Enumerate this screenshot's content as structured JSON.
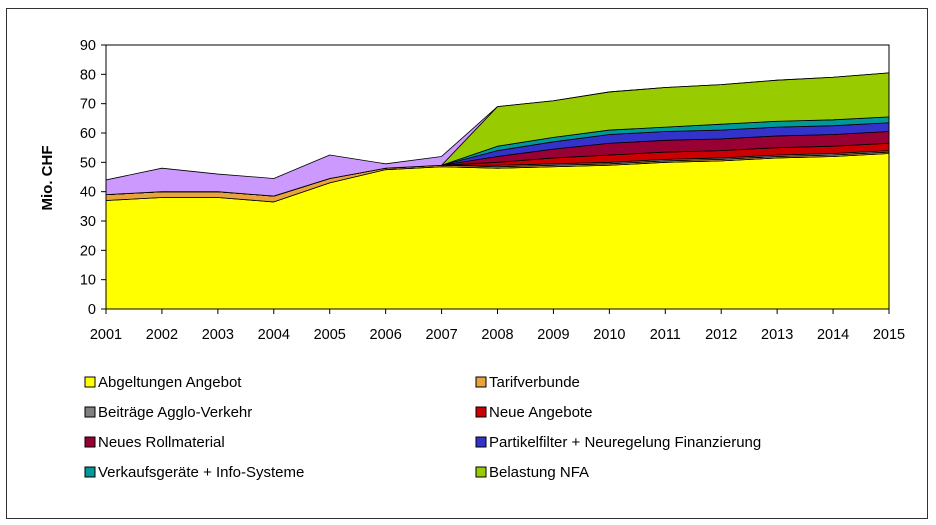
{
  "chart_data": {
    "type": "area",
    "stacked": true,
    "title": "",
    "xlabel": "",
    "ylabel": "Mio. CHF",
    "ylim": [
      0,
      90
    ],
    "yticks": [
      0,
      10,
      20,
      30,
      40,
      50,
      60,
      70,
      80,
      90
    ],
    "grid": false,
    "legend_position": "bottom",
    "x": [
      "2001",
      "2002",
      "2003",
      "2004",
      "2005",
      "2006",
      "2007",
      "2008",
      "2009",
      "2010",
      "2011",
      "2012",
      "2013",
      "2014",
      "2015"
    ],
    "series": [
      {
        "name": "Abgeltungen Angebot",
        "color": "#ffff00",
        "values": [
          37,
          38,
          38,
          36.5,
          43,
          47.5,
          48.5,
          48,
          48.5,
          49,
          50,
          50.5,
          51.5,
          52,
          53
        ]
      },
      {
        "name": "Tarifverbunde",
        "color": "#e8a33c",
        "values": [
          2,
          2,
          2,
          2,
          1.5,
          0.5,
          0.5,
          0.5,
          0.5,
          0.5,
          0.5,
          0.5,
          0.5,
          0.5,
          0.5
        ]
      },
      {
        "name": "Beiträge Agglo-Verkehr",
        "color": "#808080",
        "values": [
          0,
          0,
          0,
          0,
          0,
          0,
          0,
          0.5,
          0.5,
          0.5,
          0.5,
          0.5,
          0.5,
          0.5,
          0.5
        ]
      },
      {
        "name": "Neue Angebote",
        "color": "#cc0000",
        "values": [
          0,
          0,
          0,
          0,
          0,
          0,
          0,
          1,
          2,
          2.5,
          2.5,
          2.5,
          2.5,
          2.5,
          2.5
        ]
      },
      {
        "name": "Neues Rollmaterial",
        "color": "#990033",
        "values": [
          0,
          0,
          0,
          0,
          0,
          0,
          0,
          2,
          3,
          4,
          4,
          4,
          4,
          4,
          4
        ]
      },
      {
        "name": "Partikelfilter + Neuregelung Finanzierung",
        "color": "#3333cc",
        "values": [
          0,
          0,
          0,
          0,
          0,
          0,
          0,
          2,
          2.5,
          3,
          3,
          3,
          3,
          3,
          3
        ]
      },
      {
        "name": "Verkaufsgeräte + Info-Systeme",
        "color": "#009999",
        "values": [
          0,
          0,
          0,
          0,
          0,
          0,
          0,
          1.5,
          1.5,
          1.5,
          1.5,
          2,
          2,
          2,
          2
        ]
      },
      {
        "name": "Belastung NFA",
        "color": "#99cc00",
        "values": [
          0,
          0,
          0,
          0,
          0,
          0,
          0,
          13.5,
          12.5,
          13,
          13.5,
          13.5,
          14,
          14.5,
          15
        ]
      },
      {
        "name": "",
        "color": "#cc99ff",
        "values": [
          5,
          8,
          6,
          6,
          8,
          1.5,
          3,
          0,
          0,
          0,
          0,
          0,
          0,
          0,
          0
        ]
      }
    ]
  }
}
